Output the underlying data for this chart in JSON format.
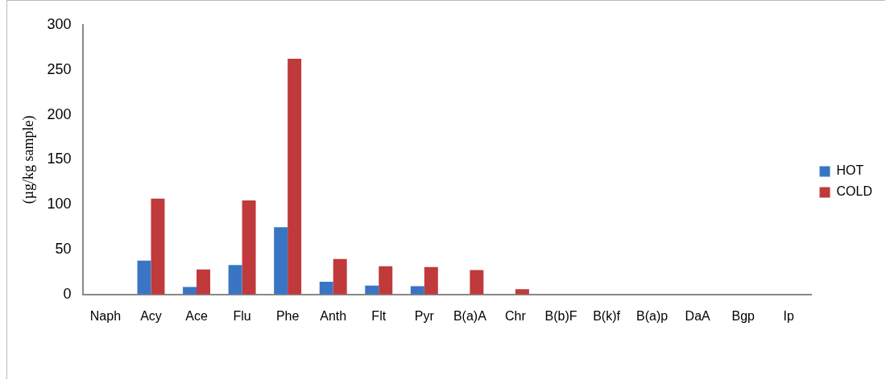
{
  "chart_data": {
    "type": "bar",
    "ylabel": "(µg/kg sample)",
    "categories": [
      "Naph",
      "Acy",
      "Ace",
      "Flu",
      "Phe",
      "Anth",
      "Flt",
      "Pyr",
      "B(a)A",
      "Chr",
      "B(b)F",
      "B(k)f",
      "B(a)p",
      "DaA",
      "Bgp",
      "Ip"
    ],
    "series": [
      {
        "name": "HOT",
        "color": "#3a75c4",
        "values": [
          0,
          37.7,
          8.4,
          32.7,
          74.8,
          14.2,
          10,
          9.2,
          0,
          0,
          0,
          0,
          0,
          0,
          0,
          0
        ]
      },
      {
        "name": "COLD",
        "color": "#c0393b",
        "values": [
          0,
          106.6,
          27.9,
          104.7,
          262.4,
          39.4,
          31.3,
          30.4,
          27.1,
          5.9,
          0,
          0,
          0,
          0,
          0,
          0
        ]
      }
    ],
    "ylim": [
      0,
      300
    ],
    "yticks": [
      0,
      50,
      100,
      150,
      200,
      250,
      300
    ],
    "grid": false,
    "legend": "right"
  }
}
